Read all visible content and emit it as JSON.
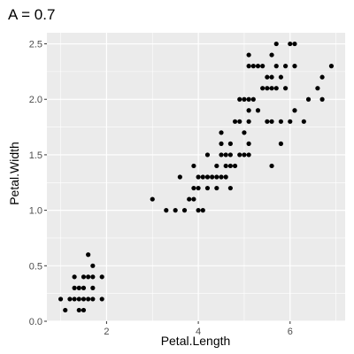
{
  "chart_data": {
    "type": "scatter",
    "title": "A = 0.7",
    "xlabel": "Petal.Length",
    "ylabel": "Petal.Width",
    "xlim": [
      0.7,
      7.2
    ],
    "ylim": [
      0.0,
      2.6
    ],
    "x_ticks": [
      2,
      4,
      6
    ],
    "y_ticks": [
      0.0,
      0.5,
      1.0,
      1.5,
      2.0,
      2.5
    ],
    "x_tick_labels": [
      "2",
      "4",
      "6"
    ],
    "y_tick_labels": [
      "0.0",
      "0.5",
      "1.0",
      "1.5",
      "2.0",
      "2.5"
    ],
    "grid": true,
    "colors": {
      "panel_background": "#ebebeb",
      "grid_major": "#ffffff",
      "point": "#000000"
    },
    "points": [
      {
        "x": 1.0,
        "y": 0.2
      },
      {
        "x": 1.1,
        "y": 0.1
      },
      {
        "x": 1.2,
        "y": 0.2
      },
      {
        "x": 1.3,
        "y": 0.2
      },
      {
        "x": 1.3,
        "y": 0.3
      },
      {
        "x": 1.3,
        "y": 0.4
      },
      {
        "x": 1.4,
        "y": 0.1
      },
      {
        "x": 1.4,
        "y": 0.2
      },
      {
        "x": 1.4,
        "y": 0.3
      },
      {
        "x": 1.5,
        "y": 0.1
      },
      {
        "x": 1.5,
        "y": 0.2
      },
      {
        "x": 1.5,
        "y": 0.3
      },
      {
        "x": 1.5,
        "y": 0.4
      },
      {
        "x": 1.6,
        "y": 0.2
      },
      {
        "x": 1.6,
        "y": 0.4
      },
      {
        "x": 1.6,
        "y": 0.6
      },
      {
        "x": 1.7,
        "y": 0.2
      },
      {
        "x": 1.7,
        "y": 0.3
      },
      {
        "x": 1.7,
        "y": 0.4
      },
      {
        "x": 1.7,
        "y": 0.5
      },
      {
        "x": 1.9,
        "y": 0.2
      },
      {
        "x": 1.9,
        "y": 0.4
      },
      {
        "x": 3.0,
        "y": 1.1
      },
      {
        "x": 3.3,
        "y": 1.0
      },
      {
        "x": 3.5,
        "y": 1.0
      },
      {
        "x": 3.6,
        "y": 1.3
      },
      {
        "x": 3.7,
        "y": 1.0
      },
      {
        "x": 3.8,
        "y": 1.1
      },
      {
        "x": 3.9,
        "y": 1.1
      },
      {
        "x": 3.9,
        "y": 1.2
      },
      {
        "x": 3.9,
        "y": 1.4
      },
      {
        "x": 4.0,
        "y": 1.0
      },
      {
        "x": 4.0,
        "y": 1.2
      },
      {
        "x": 4.0,
        "y": 1.3
      },
      {
        "x": 4.1,
        "y": 1.0
      },
      {
        "x": 4.1,
        "y": 1.3
      },
      {
        "x": 4.2,
        "y": 1.2
      },
      {
        "x": 4.2,
        "y": 1.3
      },
      {
        "x": 4.2,
        "y": 1.5
      },
      {
        "x": 4.3,
        "y": 1.3
      },
      {
        "x": 4.4,
        "y": 1.2
      },
      {
        "x": 4.4,
        "y": 1.3
      },
      {
        "x": 4.4,
        "y": 1.4
      },
      {
        "x": 4.5,
        "y": 1.3
      },
      {
        "x": 4.5,
        "y": 1.5
      },
      {
        "x": 4.5,
        "y": 1.6
      },
      {
        "x": 4.5,
        "y": 1.7
      },
      {
        "x": 4.6,
        "y": 1.3
      },
      {
        "x": 4.6,
        "y": 1.4
      },
      {
        "x": 4.6,
        "y": 1.5
      },
      {
        "x": 4.7,
        "y": 1.2
      },
      {
        "x": 4.7,
        "y": 1.4
      },
      {
        "x": 4.7,
        "y": 1.5
      },
      {
        "x": 4.7,
        "y": 1.6
      },
      {
        "x": 4.8,
        "y": 1.4
      },
      {
        "x": 4.8,
        "y": 1.8
      },
      {
        "x": 4.9,
        "y": 1.5
      },
      {
        "x": 4.9,
        "y": 1.8
      },
      {
        "x": 4.9,
        "y": 2.0
      },
      {
        "x": 5.0,
        "y": 1.5
      },
      {
        "x": 5.0,
        "y": 1.7
      },
      {
        "x": 5.0,
        "y": 2.0
      },
      {
        "x": 5.1,
        "y": 1.5
      },
      {
        "x": 5.1,
        "y": 1.6
      },
      {
        "x": 5.1,
        "y": 1.8
      },
      {
        "x": 5.1,
        "y": 1.9
      },
      {
        "x": 5.1,
        "y": 2.0
      },
      {
        "x": 5.1,
        "y": 2.3
      },
      {
        "x": 5.1,
        "y": 2.4
      },
      {
        "x": 5.2,
        "y": 2.0
      },
      {
        "x": 5.2,
        "y": 2.3
      },
      {
        "x": 5.3,
        "y": 1.9
      },
      {
        "x": 5.3,
        "y": 2.3
      },
      {
        "x": 5.4,
        "y": 2.1
      },
      {
        "x": 5.4,
        "y": 2.3
      },
      {
        "x": 5.5,
        "y": 1.8
      },
      {
        "x": 5.5,
        "y": 2.1
      },
      {
        "x": 5.5,
        "y": 2.2
      },
      {
        "x": 5.6,
        "y": 1.4
      },
      {
        "x": 5.6,
        "y": 1.8
      },
      {
        "x": 5.6,
        "y": 2.1
      },
      {
        "x": 5.6,
        "y": 2.2
      },
      {
        "x": 5.6,
        "y": 2.4
      },
      {
        "x": 5.7,
        "y": 2.1
      },
      {
        "x": 5.7,
        "y": 2.3
      },
      {
        "x": 5.7,
        "y": 2.5
      },
      {
        "x": 5.8,
        "y": 1.6
      },
      {
        "x": 5.8,
        "y": 1.8
      },
      {
        "x": 5.8,
        "y": 2.2
      },
      {
        "x": 5.9,
        "y": 2.1
      },
      {
        "x": 5.9,
        "y": 2.3
      },
      {
        "x": 6.0,
        "y": 1.8
      },
      {
        "x": 6.0,
        "y": 2.5
      },
      {
        "x": 6.1,
        "y": 1.9
      },
      {
        "x": 6.1,
        "y": 2.3
      },
      {
        "x": 6.1,
        "y": 2.5
      },
      {
        "x": 6.3,
        "y": 1.8
      },
      {
        "x": 6.4,
        "y": 2.0
      },
      {
        "x": 6.6,
        "y": 2.1
      },
      {
        "x": 6.7,
        "y": 2.0
      },
      {
        "x": 6.7,
        "y": 2.2
      },
      {
        "x": 6.9,
        "y": 2.3
      }
    ]
  }
}
